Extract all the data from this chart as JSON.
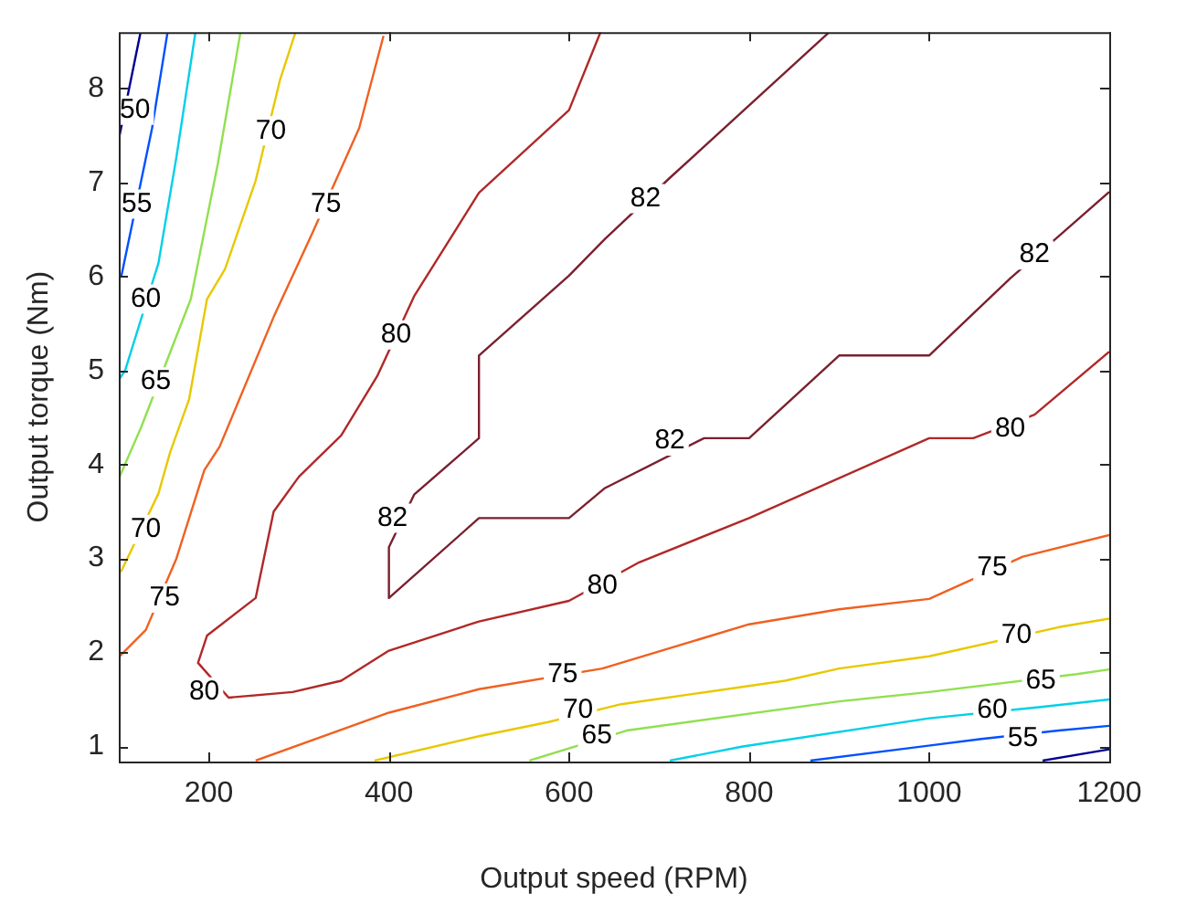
{
  "chart_data": {
    "type": "line",
    "xlabel": "Output speed (RPM)",
    "ylabel": "Output torque (Nm)",
    "xlim": [
      100,
      1200
    ],
    "ylim": [
      0.84,
      8.6
    ],
    "xticks": [
      200,
      400,
      600,
      800,
      1000,
      1200
    ],
    "yticks": [
      1,
      2,
      3,
      4,
      5,
      6,
      7,
      8
    ],
    "series": [
      {
        "color": "#00008f",
        "x": [
          124,
          100
        ],
        "values": [
          8.59,
          7.46
        ]
      },
      {
        "color": "#0050ff",
        "x": [
          154,
          137,
          103,
          100
        ],
        "values": [
          8.59,
          7.58,
          6.01,
          6.0
        ]
      },
      {
        "color": "#00d0e8",
        "x": [
          185,
          164,
          144,
          107,
          100
        ],
        "values": [
          8.59,
          7.27,
          6.14,
          5.0,
          4.9
        ]
      },
      {
        "color": "#90e050",
        "x": [
          235,
          210,
          180,
          125,
          100
        ],
        "values": [
          8.59,
          7.2,
          5.76,
          4.4,
          3.85
        ]
      },
      {
        "color": "#e8c800",
        "x": [
          296,
          279,
          252,
          218,
          198,
          178,
          157,
          144,
          103,
          100
        ],
        "values": [
          8.59,
          8.09,
          7.02,
          6.08,
          5.76,
          4.69,
          4.13,
          3.69,
          2.87,
          2.85
        ]
      },
      {
        "color": "#f06020",
        "x": [
          394,
          367,
          313,
          272,
          212,
          195,
          164,
          130,
          100
        ],
        "values": [
          8.56,
          7.58,
          6.42,
          5.57,
          4.19,
          3.94,
          3.0,
          2.24,
          1.95
        ]
      },
      {
        "color": "#b02828",
        "x": [
          635,
          600,
          500,
          428,
          387,
          347,
          300,
          272,
          252,
          198,
          188,
          222,
          293,
          347,
          400,
          500,
          600,
          678,
          800,
          1000,
          1049,
          1117,
          1200
        ],
        "values": [
          8.6,
          7.77,
          6.89,
          5.79,
          4.94,
          4.31,
          3.87,
          3.5,
          2.58,
          2.18,
          1.89,
          1.52,
          1.58,
          1.7,
          2.02,
          2.33,
          2.55,
          2.96,
          3.43,
          4.28,
          4.28,
          4.53,
          5.2
        ]
      },
      {
        "color": "#7a2030",
        "x": [
          888,
          712,
          640,
          600,
          500,
          500,
          428,
          400,
          400,
          500,
          600,
          640,
          750,
          800,
          900,
          1000,
          1090,
          1150,
          1200
        ],
        "values": [
          8.59,
          7.05,
          6.4,
          6.01,
          5.16,
          4.28,
          3.68,
          3.12,
          2.58,
          3.43,
          3.43,
          3.75,
          4.28,
          4.28,
          5.16,
          5.16,
          5.98,
          6.48,
          6.9
        ]
      },
      {
        "color": "#f06020",
        "x": [
          252,
          400,
          500,
          637,
          800,
          900,
          1000,
          1104,
          1200
        ],
        "values": [
          0.85,
          1.36,
          1.61,
          1.83,
          2.3,
          2.46,
          2.57,
          3.02,
          3.25
        ]
      },
      {
        "color": "#e8c800",
        "x": [
          384,
          500,
          577,
          658,
          840,
          900,
          1000,
          1144,
          1200
        ],
        "values": [
          0.85,
          1.11,
          1.26,
          1.45,
          1.7,
          1.83,
          1.96,
          2.27,
          2.36
        ]
      },
      {
        "color": "#90e050",
        "x": [
          556,
          664,
          900,
          1000,
          1164,
          1200
        ],
        "values": [
          0.85,
          1.17,
          1.48,
          1.58,
          1.77,
          1.82
        ]
      },
      {
        "color": "#00d0e8",
        "x": [
          712,
          793,
          1000,
          1124,
          1200
        ],
        "values": [
          0.85,
          1.0,
          1.3,
          1.42,
          1.5
        ]
      },
      {
        "color": "#0050ff",
        "x": [
          868,
          1058,
          1144,
          1200
        ],
        "values": [
          0.85,
          1.08,
          1.17,
          1.22
        ]
      },
      {
        "color": "#00008f",
        "x": [
          1126,
          1200
        ],
        "values": [
          0.85,
          0.97
        ]
      }
    ],
    "annotations": [
      {
        "text": "50",
        "x": 118,
        "y": 7.77
      },
      {
        "text": "55",
        "x": 120,
        "y": 6.77
      },
      {
        "text": "55",
        "x": 1104,
        "y": 1.09
      },
      {
        "text": "60",
        "x": 130,
        "y": 5.76
      },
      {
        "text": "60",
        "x": 1070,
        "y": 1.39
      },
      {
        "text": "65",
        "x": 141,
        "y": 4.88
      },
      {
        "text": "65",
        "x": 631,
        "y": 1.11
      },
      {
        "text": "65",
        "x": 1124,
        "y": 1.7
      },
      {
        "text": "70",
        "x": 269,
        "y": 7.55
      },
      {
        "text": "70",
        "x": 130,
        "y": 3.31
      },
      {
        "text": "70",
        "x": 610,
        "y": 1.39
      },
      {
        "text": "70",
        "x": 1097,
        "y": 2.18
      },
      {
        "text": "75",
        "x": 330,
        "y": 6.77
      },
      {
        "text": "75",
        "x": 151,
        "y": 2.58
      },
      {
        "text": "75",
        "x": 593,
        "y": 1.77
      },
      {
        "text": "75",
        "x": 1070,
        "y": 2.9
      },
      {
        "text": "80",
        "x": 408,
        "y": 5.38
      },
      {
        "text": "80",
        "x": 195,
        "y": 1.58
      },
      {
        "text": "80",
        "x": 637,
        "y": 2.71
      },
      {
        "text": "80",
        "x": 1090,
        "y": 4.38
      },
      {
        "text": "82",
        "x": 404,
        "y": 3.43
      },
      {
        "text": "82",
        "x": 685,
        "y": 6.83
      },
      {
        "text": "82",
        "x": 712,
        "y": 4.25
      },
      {
        "text": "82",
        "x": 1117,
        "y": 6.23
      }
    ]
  }
}
